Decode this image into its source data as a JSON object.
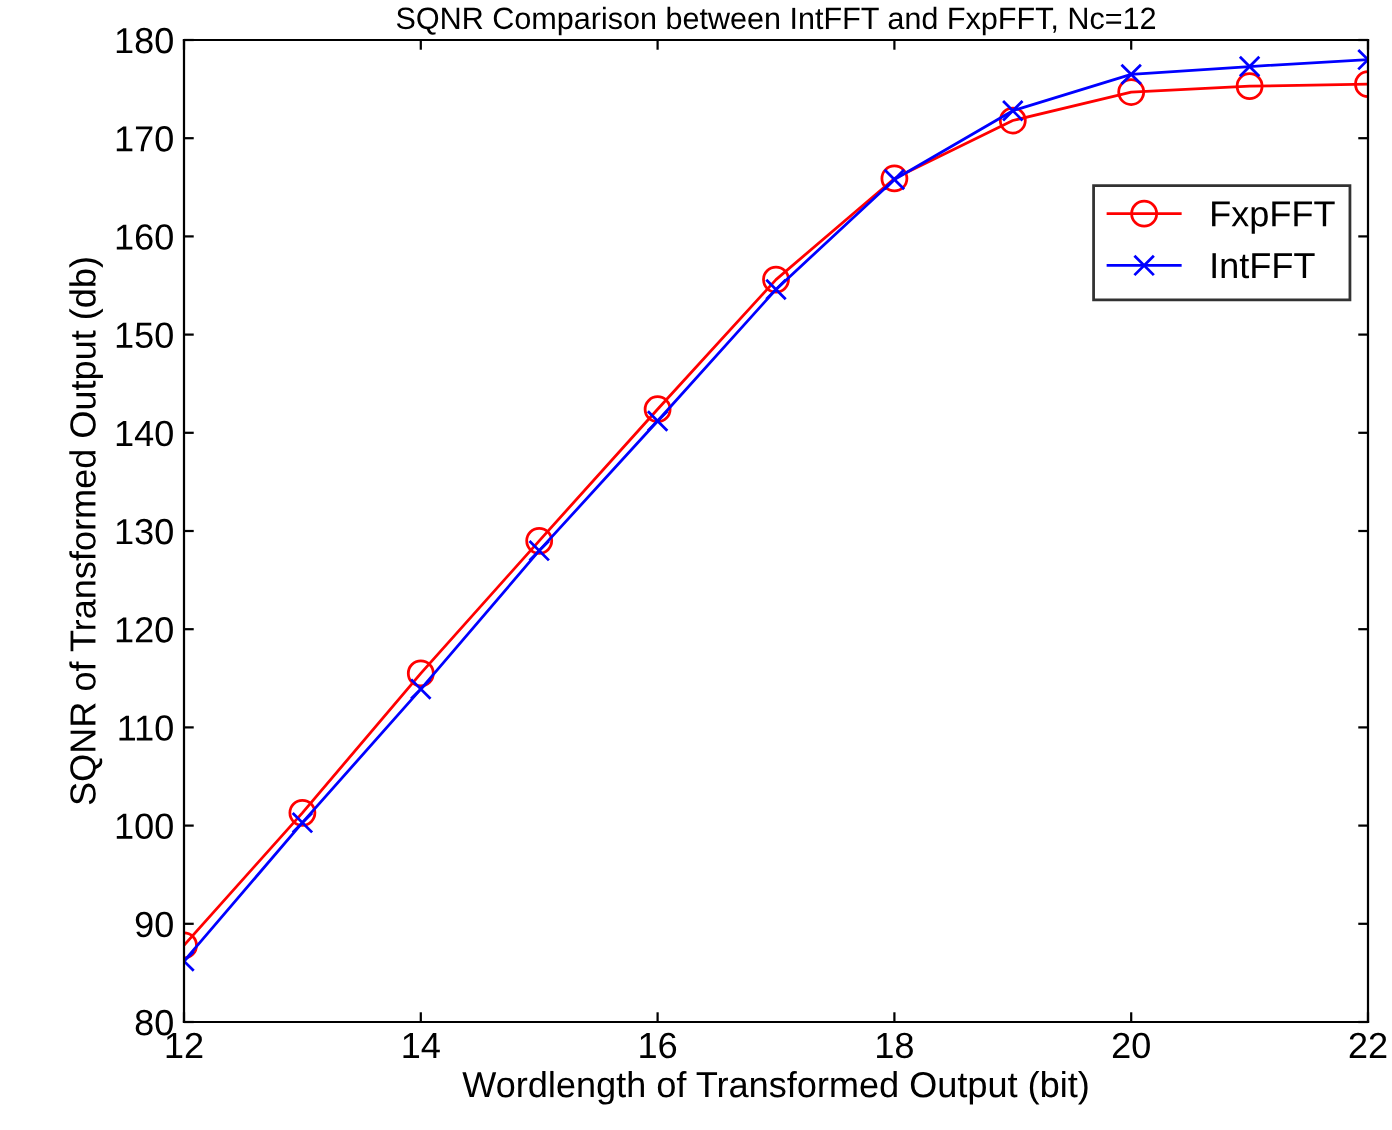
{
  "chart_data": {
    "type": "line",
    "title": "SQNR Comparison between IntFFT and FxpFFT, Nc=12",
    "xlabel": "Wordlength of Transformed Output (bit)",
    "ylabel": "SQNR of Transformed Output (db)",
    "x": [
      12,
      13,
      14,
      15,
      16,
      17,
      18,
      19,
      20,
      21,
      22
    ],
    "series": [
      {
        "name": "FxpFFT",
        "color": "#ff0000",
        "marker": "circle",
        "values": [
          87.8,
          101.3,
          115.5,
          129.0,
          142.4,
          155.6,
          165.9,
          171.8,
          174.7,
          175.3,
          175.5
        ]
      },
      {
        "name": "IntFFT",
        "color": "#0000ff",
        "marker": "cross",
        "values": [
          86.2,
          100.3,
          113.9,
          128.0,
          141.2,
          154.6,
          165.8,
          172.8,
          176.5,
          177.3,
          178.0
        ]
      }
    ],
    "xlim": [
      12,
      22
    ],
    "xticks": [
      12,
      14,
      16,
      18,
      20,
      22
    ],
    "ylim": [
      80,
      180
    ],
    "yticks": [
      80,
      90,
      100,
      110,
      120,
      130,
      140,
      150,
      160,
      170,
      180
    ],
    "grid": false,
    "legend": "top right",
    "line_style": "solid"
  }
}
